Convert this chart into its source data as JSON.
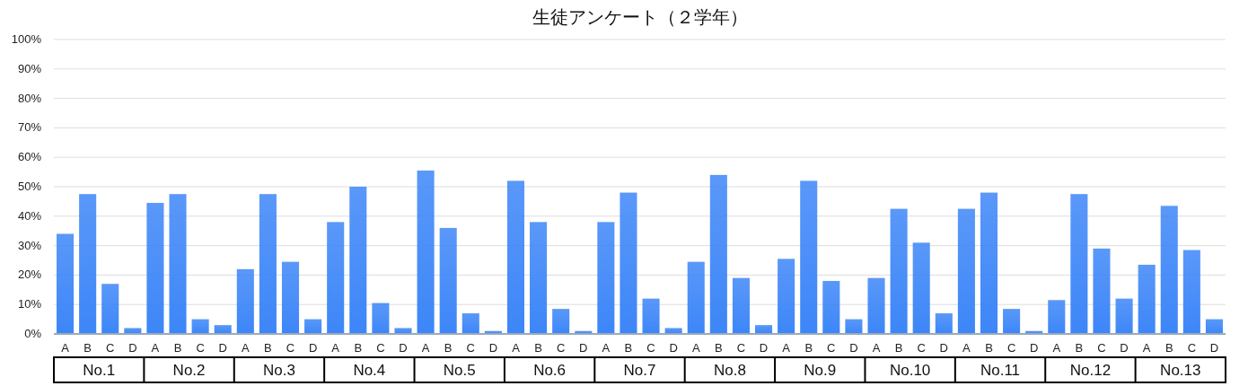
{
  "chart_data": {
    "type": "bar",
    "title": "生徒アンケート（２学年）",
    "categories": [
      "A",
      "B",
      "C",
      "D",
      "A",
      "B",
      "C",
      "D",
      "A",
      "B",
      "C",
      "D",
      "A",
      "B",
      "C",
      "D",
      "A",
      "B",
      "C",
      "D",
      "A",
      "B",
      "C",
      "D",
      "A",
      "B",
      "C",
      "D",
      "A",
      "B",
      "C",
      "D",
      "A",
      "B",
      "C",
      "D",
      "A",
      "B",
      "C",
      "D",
      "A",
      "B",
      "C",
      "D",
      "A",
      "B",
      "C",
      "D",
      "A",
      "B",
      "C",
      "D"
    ],
    "values": [
      34,
      47.5,
      17,
      2,
      44.5,
      47.5,
      5,
      3,
      22,
      47.5,
      24.5,
      5,
      38,
      50,
      10.5,
      2,
      55.5,
      36,
      7,
      1,
      52,
      38,
      8.5,
      1,
      38,
      48,
      12,
      2,
      24.5,
      54,
      19,
      3,
      25.5,
      52,
      18,
      5,
      19,
      42.5,
      31,
      7,
      42.5,
      48,
      8.5,
      1,
      11.5,
      47.5,
      29,
      12,
      23.5,
      43.5,
      28.5,
      5
    ],
    "color": "#3d86f8",
    "annotations": [
      "No.1",
      "No.2",
      "No.3",
      "No.4",
      "No.5",
      "No.6",
      "No.7",
      "No.8",
      "No.9",
      "No.10",
      "No.11",
      "No.12",
      "No.13"
    ],
    "ylim": [
      0,
      100
    ],
    "yticks": [
      {
        "value": 0,
        "label": "0%"
      },
      {
        "value": 10,
        "label": "10%"
      },
      {
        "value": 20,
        "label": "20%"
      },
      {
        "value": 30,
        "label": "30%"
      },
      {
        "value": 40,
        "label": "40%"
      },
      {
        "value": 50,
        "label": "50%"
      },
      {
        "value": 60,
        "label": "60%"
      },
      {
        "value": 70,
        "label": "70%"
      },
      {
        "value": 80,
        "label": "80%"
      },
      {
        "value": 90,
        "label": "90%"
      },
      {
        "value": 100,
        "label": "100%"
      }
    ],
    "grid": "y"
  }
}
